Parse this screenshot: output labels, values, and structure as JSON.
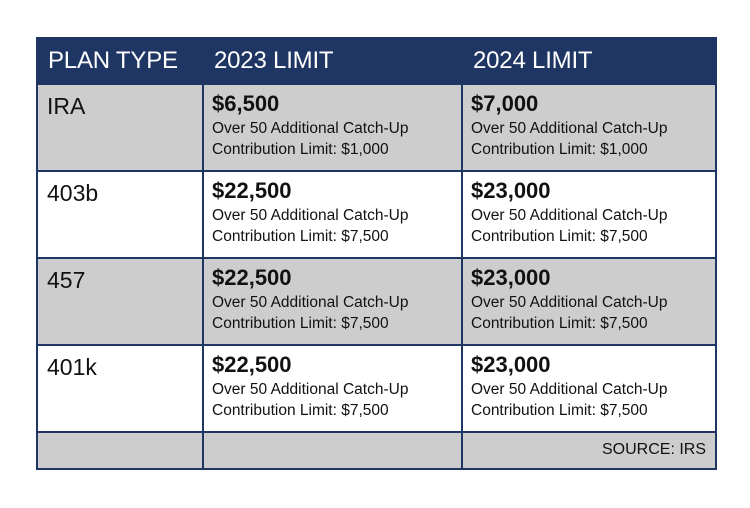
{
  "headers": [
    "PLAN TYPE",
    "2023 LIMIT",
    "2024 LIMIT"
  ],
  "rows": [
    {
      "plan": "IRA",
      "y2023": {
        "amount": "$6,500",
        "line1": "Over 50 Additional Catch-Up",
        "line2": "Contribution Limit: $1,000"
      },
      "y2024": {
        "amount": "$7,000",
        "line1": "Over 50 Additional Catch-Up",
        "line2": "Contribution Limit: $1,000"
      }
    },
    {
      "plan": "403b",
      "y2023": {
        "amount": "$22,500",
        "line1": "Over 50 Additional Catch-Up",
        "line2": "Contribution Limit: $7,500"
      },
      "y2024": {
        "amount": "$23,000",
        "line1": "Over 50 Additional Catch-Up",
        "line2": "Contribution Limit: $7,500"
      }
    },
    {
      "plan": "457",
      "y2023": {
        "amount": "$22,500",
        "line1": "Over 50 Additional Catch-Up",
        "line2": "Contribution Limit: $7,500"
      },
      "y2024": {
        "amount": "$23,000",
        "line1": "Over 50 Additional Catch-Up",
        "line2": "Contribution Limit: $7,500"
      }
    },
    {
      "plan": "401k",
      "y2023": {
        "amount": "$22,500",
        "line1": "Over 50 Additional Catch-Up",
        "line2": "Contribution Limit: $7,500"
      },
      "y2024": {
        "amount": "$23,000",
        "line1": "Over 50 Additional Catch-Up",
        "line2": "Contribution Limit: $7,500"
      }
    }
  ],
  "source": "SOURCE: IRS",
  "colors": {
    "header_bg": "#1f3563",
    "shaded_row": "#cdcdcd",
    "border": "#1f3563"
  }
}
